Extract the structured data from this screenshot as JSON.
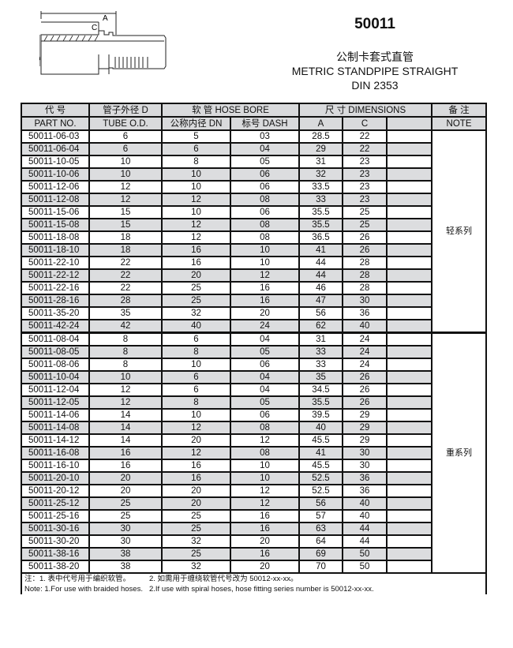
{
  "drawing": {
    "label_a": "A",
    "label_c": "C",
    "label_d": "D"
  },
  "title": "50011",
  "subtitle_cn": "公制卡套式直管",
  "subtitle_en": "METRIC STANDPIPE STRAIGHT",
  "standard": "DIN 2353",
  "table": {
    "headers": {
      "part_cn": "代 号",
      "part_en": "PART NO.",
      "tube_cn": "管子外径 D",
      "tube_en": "TUBE O.D.",
      "hose": "软 管 HOSE BORE",
      "dn": "公称内径 DN",
      "dash": "标号 DASH",
      "dims": "尺 寸 DIMENSIONS",
      "a": "A",
      "c": "C",
      "note_cn": "备 注",
      "note_en": "NOTE"
    },
    "groups": [
      {
        "note": "轻系列",
        "rows": [
          [
            "50011-06-03",
            "6",
            "5",
            "03",
            "28.5",
            "22"
          ],
          [
            "50011-06-04",
            "6",
            "6",
            "04",
            "29",
            "22"
          ],
          [
            "50011-10-05",
            "10",
            "8",
            "05",
            "31",
            "23"
          ],
          [
            "50011-10-06",
            "10",
            "10",
            "06",
            "32",
            "23"
          ],
          [
            "50011-12-06",
            "12",
            "10",
            "06",
            "33.5",
            "23"
          ],
          [
            "50011-12-08",
            "12",
            "12",
            "08",
            "33",
            "23"
          ],
          [
            "50011-15-06",
            "15",
            "10",
            "06",
            "35.5",
            "25"
          ],
          [
            "50011-15-08",
            "15",
            "12",
            "08",
            "35.5",
            "25"
          ],
          [
            "50011-18-08",
            "18",
            "12",
            "08",
            "36.5",
            "26"
          ],
          [
            "50011-18-10",
            "18",
            "16",
            "10",
            "41",
            "26"
          ],
          [
            "50011-22-10",
            "22",
            "16",
            "10",
            "44",
            "28"
          ],
          [
            "50011-22-12",
            "22",
            "20",
            "12",
            "44",
            "28"
          ],
          [
            "50011-22-16",
            "22",
            "25",
            "16",
            "46",
            "28"
          ],
          [
            "50011-28-16",
            "28",
            "25",
            "16",
            "47",
            "30"
          ],
          [
            "50011-35-20",
            "35",
            "32",
            "20",
            "56",
            "36"
          ],
          [
            "50011-42-24",
            "42",
            "40",
            "24",
            "62",
            "40"
          ]
        ]
      },
      {
        "note": "重系列",
        "rows": [
          [
            "50011-08-04",
            "8",
            "6",
            "04",
            "31",
            "24"
          ],
          [
            "50011-08-05",
            "8",
            "8",
            "05",
            "33",
            "24"
          ],
          [
            "50011-08-06",
            "8",
            "10",
            "06",
            "33",
            "24"
          ],
          [
            "50011-10-04",
            "10",
            "6",
            "04",
            "35",
            "26"
          ],
          [
            "50011-12-04",
            "12",
            "6",
            "04",
            "34.5",
            "26"
          ],
          [
            "50011-12-05",
            "12",
            "8",
            "05",
            "35.5",
            "26"
          ],
          [
            "50011-14-06",
            "14",
            "10",
            "06",
            "39.5",
            "29"
          ],
          [
            "50011-14-08",
            "14",
            "12",
            "08",
            "40",
            "29"
          ],
          [
            "50011-14-12",
            "14",
            "20",
            "12",
            "45.5",
            "29"
          ],
          [
            "50011-16-08",
            "16",
            "12",
            "08",
            "41",
            "30"
          ],
          [
            "50011-16-10",
            "16",
            "16",
            "10",
            "45.5",
            "30"
          ],
          [
            "50011-20-10",
            "20",
            "16",
            "10",
            "52.5",
            "36"
          ],
          [
            "50011-20-12",
            "20",
            "20",
            "12",
            "52.5",
            "36"
          ],
          [
            "50011-25-12",
            "25",
            "20",
            "12",
            "56",
            "40"
          ],
          [
            "50011-25-16",
            "25",
            "25",
            "16",
            "57",
            "40"
          ],
          [
            "50011-30-16",
            "30",
            "25",
            "16",
            "63",
            "44"
          ],
          [
            "50011-30-20",
            "30",
            "32",
            "20",
            "64",
            "44"
          ],
          [
            "50011-38-16",
            "38",
            "25",
            "16",
            "69",
            "50"
          ],
          [
            "50011-38-20",
            "38",
            "32",
            "20",
            "70",
            "50"
          ]
        ]
      }
    ],
    "footnotes": {
      "cn_1": "注：1. 表中代号用于编织软管。",
      "cn_2": "2. 如需用于缠绕软管代号改为 50012-xx-xx。",
      "en_1": "Note: 1.For use with braided hoses.",
      "en_2": "2.If use with spiral hoses, hose fitting series number is 50012-xx-xx."
    }
  }
}
